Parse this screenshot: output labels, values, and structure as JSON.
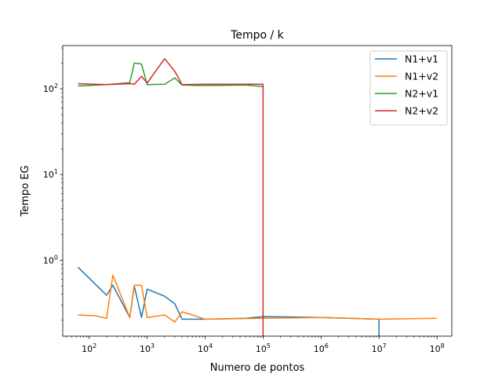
{
  "chart_data": {
    "type": "line",
    "title": "Tempo / k",
    "xlabel": "Numero de pontos",
    "ylabel": "Tempo EG",
    "xscale": "log",
    "yscale": "log",
    "xlim": [
      35,
      180000000
    ],
    "ylim": [
      0.13,
      320
    ],
    "x_ticks": [
      {
        "value": 100,
        "base": "10",
        "exp": "2"
      },
      {
        "value": 1000,
        "base": "10",
        "exp": "3"
      },
      {
        "value": 10000,
        "base": "10",
        "exp": "4"
      },
      {
        "value": 100000,
        "base": "10",
        "exp": "5"
      },
      {
        "value": 1000000,
        "base": "10",
        "exp": "6"
      },
      {
        "value": 10000000,
        "base": "10",
        "exp": "7"
      },
      {
        "value": 100000000,
        "base": "10",
        "exp": "8"
      }
    ],
    "y_ticks": [
      {
        "value": 1,
        "base": "10",
        "exp": "0"
      },
      {
        "value": 10,
        "base": "10",
        "exp": "1"
      },
      {
        "value": 100,
        "base": "10",
        "exp": "2"
      }
    ],
    "grid": false,
    "legend_position": "top-right",
    "series": [
      {
        "name": "N1+v1",
        "color": "#1f77b4",
        "x": [
          64,
          200,
          256,
          500,
          600,
          800,
          1000,
          2000,
          3000,
          4000,
          6000,
          10000,
          50000,
          100000,
          1000000,
          10000000,
          10000000
        ],
        "y": [
          0.83,
          0.39,
          0.51,
          0.215,
          0.5,
          0.215,
          0.46,
          0.38,
          0.31,
          0.205,
          0.205,
          0.205,
          0.21,
          0.22,
          0.215,
          0.205,
          0.13
        ]
      },
      {
        "name": "N1+v2",
        "color": "#ff7f0e",
        "x": [
          64,
          128,
          200,
          256,
          500,
          600,
          800,
          1000,
          2000,
          3000,
          4000,
          6000,
          10000,
          100000,
          1000000,
          10000000,
          100000000
        ],
        "y": [
          0.23,
          0.225,
          0.21,
          0.67,
          0.215,
          0.51,
          0.51,
          0.215,
          0.23,
          0.19,
          0.25,
          0.23,
          0.205,
          0.21,
          0.215,
          0.205,
          0.21
        ]
      },
      {
        "name": "N2+v1",
        "color": "#2ca02c",
        "x": [
          64,
          200,
          500,
          600,
          800,
          1000,
          2000,
          3000,
          4000,
          10000,
          50000,
          100000
        ],
        "y": [
          108,
          112,
          118,
          200,
          195,
          112,
          113,
          134,
          111,
          109,
          111,
          106
        ]
      },
      {
        "name": "N2+v2",
        "color": "#d62728",
        "x": [
          64,
          200,
          500,
          600,
          800,
          1000,
          2000,
          3000,
          4000,
          10000,
          100000,
          100000
        ],
        "y": [
          115,
          112,
          115,
          113,
          140,
          117,
          225,
          160,
          112,
          113,
          113,
          0.13
        ]
      }
    ]
  }
}
